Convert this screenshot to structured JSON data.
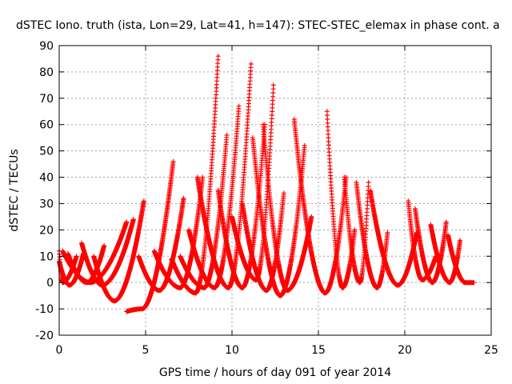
{
  "chart_data": {
    "type": "scatter",
    "title": "dSTEC Iono. truth (ista, Lon=29, Lat=41, h=147): STEC-STEC_elemax in phase cont. a",
    "xlabel": "GPS time / hours of day 091 of year 2014",
    "ylabel": "dSTEC  / TECUs",
    "xlim": [
      0,
      25
    ],
    "ylim": [
      -20,
      90
    ],
    "xticks": [
      0,
      5,
      10,
      15,
      20,
      25
    ],
    "yticks": [
      -20,
      -10,
      0,
      10,
      20,
      30,
      40,
      50,
      60,
      70,
      80,
      90
    ],
    "grid": true,
    "marker": "plus",
    "color": "#ff0000",
    "arcs": [
      {
        "t0": 0.0,
        "tmin": 0.2,
        "t1": 1.0,
        "ymin": 0,
        "ystart": 12,
        "yend": 10
      },
      {
        "t0": 0.0,
        "tmin": 0.6,
        "t1": 1.4,
        "ymin": -1,
        "ystart": 8,
        "yend": 11
      },
      {
        "t0": 0.5,
        "tmin": 1.6,
        "t1": 2.6,
        "ymin": 0,
        "ystart": 11,
        "yend": 14
      },
      {
        "t0": 0.2,
        "tmin": 1.8,
        "t1": 3.9,
        "ymin": 0,
        "ystart": 12,
        "yend": 23
      },
      {
        "t0": 1.3,
        "tmin": 2.5,
        "t1": 4.3,
        "ymin": -1,
        "ystart": 15,
        "yend": 24
      },
      {
        "t0": 2.0,
        "tmin": 3.2,
        "t1": 4.9,
        "ymin": -7,
        "ystart": 10,
        "yend": 31
      },
      {
        "t0": 3.9,
        "tmin": 4.8,
        "t1": 6.6,
        "ymin": -10,
        "ystart": -11,
        "yend": 46
      },
      {
        "t0": 4.6,
        "tmin": 5.8,
        "t1": 7.2,
        "ymin": -3,
        "ystart": 10,
        "yend": 32
      },
      {
        "t0": 5.5,
        "tmin": 7.0,
        "t1": 8.3,
        "ymin": -2,
        "ystart": 12,
        "yend": 40
      },
      {
        "t0": 6.5,
        "tmin": 7.9,
        "t1": 9.2,
        "ymin": -4,
        "ystart": 9,
        "yend": 86
      },
      {
        "t0": 7.0,
        "tmin": 8.4,
        "t1": 9.7,
        "ymin": -2,
        "ystart": 10,
        "yend": 56
      },
      {
        "t0": 7.5,
        "tmin": 9.0,
        "t1": 10.4,
        "ymin": -2,
        "ystart": 20,
        "yend": 67
      },
      {
        "t0": 8.0,
        "tmin": 9.8,
        "t1": 11.1,
        "ymin": -2,
        "ystart": 40,
        "yend": 83
      },
      {
        "t0": 9.2,
        "tmin": 10.6,
        "t1": 11.9,
        "ymin": -2,
        "ystart": 35,
        "yend": 60
      },
      {
        "t0": 10.0,
        "tmin": 11.4,
        "t1": 12.4,
        "ymin": 1,
        "ystart": 25,
        "yend": 75
      },
      {
        "t0": 10.6,
        "tmin": 12.0,
        "t1": 13.0,
        "ymin": -3,
        "ystart": 30,
        "yend": 34
      },
      {
        "t0": 11.2,
        "tmin": 12.8,
        "t1": 14.2,
        "ymin": -5,
        "ystart": 55,
        "yend": 52
      },
      {
        "t0": 11.8,
        "tmin": 13.2,
        "t1": 14.6,
        "ymin": -3,
        "ystart": 60,
        "yend": 25
      },
      {
        "t0": 13.6,
        "tmin": 15.4,
        "t1": 16.6,
        "ymin": -4,
        "ystart": 62,
        "yend": 40
      },
      {
        "t0": 15.5,
        "tmin": 16.4,
        "t1": 17.1,
        "ymin": -2,
        "ystart": 65,
        "yend": 20
      },
      {
        "t0": 16.5,
        "tmin": 17.4,
        "t1": 17.9,
        "ymin": 0,
        "ystart": 40,
        "yend": 38
      },
      {
        "t0": 17.2,
        "tmin": 18.4,
        "t1": 19.0,
        "ymin": -2,
        "ystart": 38,
        "yend": 19
      },
      {
        "t0": 18.0,
        "tmin": 19.6,
        "t1": 20.7,
        "ymin": -1,
        "ystart": 35,
        "yend": 19
      },
      {
        "t0": 20.2,
        "tmin": 21.0,
        "t1": 21.8,
        "ymin": 1,
        "ystart": 31,
        "yend": 10
      },
      {
        "t0": 20.6,
        "tmin": 21.6,
        "t1": 22.4,
        "ymin": 0,
        "ystart": 28,
        "yend": 23
      },
      {
        "t0": 21.5,
        "tmin": 22.6,
        "t1": 23.2,
        "ymin": 0,
        "ystart": 22,
        "yend": 16
      },
      {
        "t0": 22.5,
        "tmin": 23.5,
        "t1": 24.0,
        "ymin": 0,
        "ystart": 18,
        "yend": 0
      }
    ]
  }
}
